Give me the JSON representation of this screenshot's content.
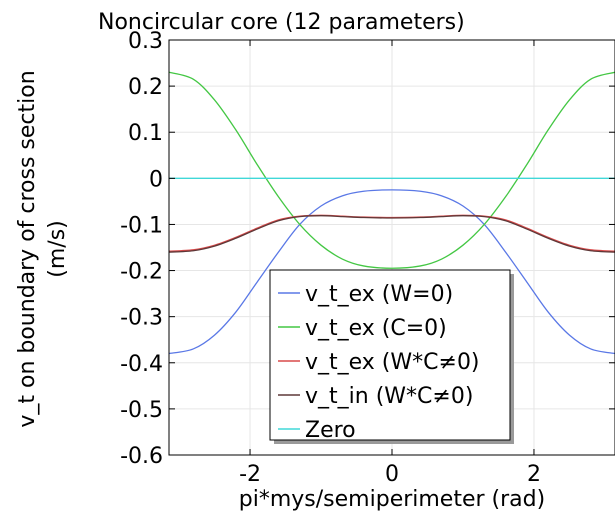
{
  "chart_data": {
    "type": "line",
    "title": "Noncircular core (12 parameters)",
    "xlabel": "pi*mys/semiperimeter (rad)",
    "ylabel_lines": [
      "v_t on boundary of cross section",
      "(m/s)"
    ],
    "xlim": [
      -3.14159,
      3.14159
    ],
    "ylim": [
      -0.6,
      0.3
    ],
    "xticks": [
      -2,
      0,
      2
    ],
    "xtick_labels": [
      "-2",
      "0",
      "2"
    ],
    "yticks": [
      0.3,
      0.2,
      0.1,
      0,
      -0.1,
      -0.2,
      -0.3,
      -0.4,
      -0.5,
      -0.6
    ],
    "ytick_labels": [
      "0.3",
      "0.2",
      "0.1",
      "0",
      "-0.1",
      "-0.2",
      "-0.3",
      "-0.4",
      "-0.5",
      "-0.6"
    ],
    "grid": true,
    "legend_position": "bottom-center",
    "series": [
      {
        "name": "v_t_ex (W=0)",
        "color": "#5a78e6",
        "x": [
          -3.14159,
          -2.8,
          -2.5,
          -2.2,
          -1.9,
          -1.6,
          -1.3,
          -1.0,
          -0.7,
          -0.4,
          0,
          0.4,
          0.7,
          1.0,
          1.3,
          1.6,
          1.9,
          2.2,
          2.5,
          2.8,
          3.14159
        ],
        "y": [
          -0.38,
          -0.37,
          -0.34,
          -0.29,
          -0.225,
          -0.16,
          -0.1,
          -0.06,
          -0.038,
          -0.028,
          -0.025,
          -0.028,
          -0.038,
          -0.06,
          -0.1,
          -0.16,
          -0.225,
          -0.29,
          -0.34,
          -0.37,
          -0.38
        ]
      },
      {
        "name": "v_t_ex (C=0)",
        "color": "#44c744",
        "x": [
          -3.14159,
          -2.8,
          -2.5,
          -2.2,
          -1.9,
          -1.6,
          -1.3,
          -1.0,
          -0.7,
          -0.4,
          0,
          0.4,
          0.7,
          1.0,
          1.3,
          1.6,
          1.9,
          2.2,
          2.5,
          2.8,
          3.14159
        ],
        "y": [
          0.23,
          0.215,
          0.17,
          0.105,
          0.03,
          -0.04,
          -0.1,
          -0.145,
          -0.175,
          -0.19,
          -0.195,
          -0.19,
          -0.175,
          -0.145,
          -0.1,
          -0.04,
          0.03,
          0.105,
          0.17,
          0.215,
          0.23
        ]
      },
      {
        "name": "v_t_ex (W*C≠0)",
        "color": "#d94a4a",
        "x": [
          -3.14159,
          -2.8,
          -2.5,
          -2.2,
          -1.9,
          -1.6,
          -1.3,
          -1.0,
          -0.7,
          -0.4,
          0,
          0.4,
          0.7,
          1.0,
          1.3,
          1.6,
          1.9,
          2.2,
          2.5,
          2.8,
          3.14159
        ],
        "y": [
          -0.158,
          -0.155,
          -0.145,
          -0.128,
          -0.108,
          -0.09,
          -0.082,
          -0.08,
          -0.082,
          -0.084,
          -0.085,
          -0.084,
          -0.082,
          -0.08,
          -0.082,
          -0.09,
          -0.108,
          -0.128,
          -0.145,
          -0.155,
          -0.158
        ]
      },
      {
        "name": "v_t_in (W*C≠0)",
        "color": "#5e3838",
        "x": [
          -3.14159,
          -2.8,
          -2.5,
          -2.2,
          -1.9,
          -1.6,
          -1.3,
          -1.0,
          -0.7,
          -0.4,
          0,
          0.4,
          0.7,
          1.0,
          1.3,
          1.6,
          1.9,
          2.2,
          2.5,
          2.8,
          3.14159
        ],
        "y": [
          -0.16,
          -0.157,
          -0.147,
          -0.13,
          -0.11,
          -0.092,
          -0.083,
          -0.081,
          -0.083,
          -0.085,
          -0.086,
          -0.085,
          -0.083,
          -0.081,
          -0.083,
          -0.092,
          -0.11,
          -0.13,
          -0.147,
          -0.157,
          -0.16
        ]
      },
      {
        "name": "Zero",
        "color": "#40d8d8",
        "x": [
          -3.14159,
          3.14159
        ],
        "y": [
          0,
          0
        ]
      }
    ]
  }
}
